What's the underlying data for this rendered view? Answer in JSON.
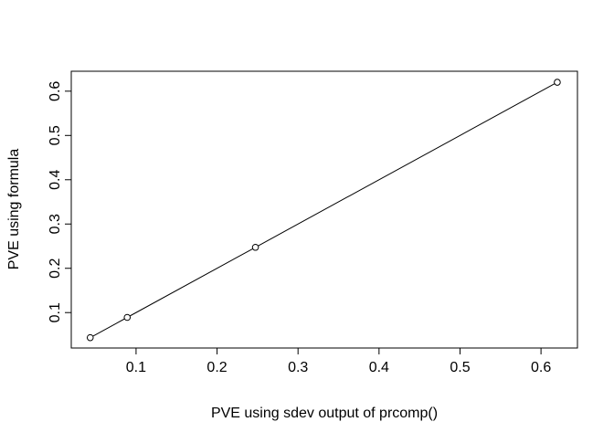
{
  "chart_data": {
    "type": "scatter",
    "connected": true,
    "title": "",
    "xlabel": "PVE using sdev output of prcomp()",
    "ylabel": "PVE using formula",
    "xlim": [
      0.02,
      0.645
    ],
    "ylim": [
      0.02,
      0.645
    ],
    "xticks": [
      0.1,
      0.2,
      0.3,
      0.4,
      0.5,
      0.6
    ],
    "xtick_labels": [
      "0.1",
      "0.2",
      "0.3",
      "0.4",
      "0.5",
      "0.6"
    ],
    "yticks": [
      0.1,
      0.2,
      0.3,
      0.4,
      0.5,
      0.6
    ],
    "ytick_labels": [
      "0.1",
      "0.2",
      "0.3",
      "0.4",
      "0.5",
      "0.6"
    ],
    "grid": false,
    "points": [
      {
        "x": 0.6201,
        "y": 0.6201
      },
      {
        "x": 0.2474,
        "y": 0.2474
      },
      {
        "x": 0.0891,
        "y": 0.0891
      },
      {
        "x": 0.0434,
        "y": 0.0434
      }
    ],
    "colors": {
      "line": "#000000",
      "marker_stroke": "#000000",
      "marker_fill": "#ffffff",
      "axis": "#000000",
      "background": "#ffffff"
    }
  }
}
